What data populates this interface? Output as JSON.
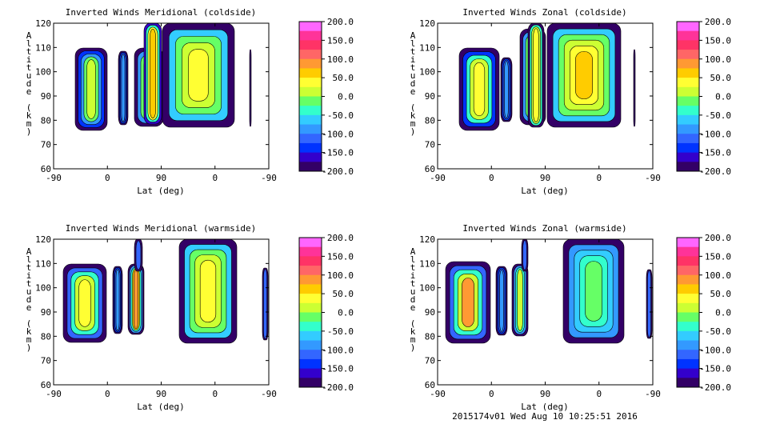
{
  "footer": "2015174v01 Wed Aug 10 10:25:51 2016",
  "colorbar": {
    "labels": [
      "200.0",
      "150.0",
      "100.0",
      "50.0",
      "0.0",
      "-50.0",
      "-100.0",
      "-150.0",
      "-200.0"
    ],
    "colors": [
      "#ff66ff",
      "#ff3399",
      "#ff3366",
      "#ff6666",
      "#ff9933",
      "#ffcc00",
      "#ffff33",
      "#ccff33",
      "#66ff66",
      "#33ffcc",
      "#33ccff",
      "#3399ff",
      "#3366ff",
      "#0033ff",
      "#3300cc",
      "#330066"
    ]
  },
  "chart_data": [
    {
      "type": "heatmap",
      "title": "Inverted Winds Meridional (coldside)",
      "xlabel": "Lat (deg)",
      "ylabel": "Altitude (km)",
      "x_ticks": [
        "-90",
        "0",
        "90",
        "0",
        "-90"
      ],
      "y_ticks": [
        "60",
        "70",
        "80",
        "90",
        "100",
        "110",
        "120"
      ],
      "ylim": [
        60,
        120
      ],
      "zlim": [
        -200,
        200
      ]
    },
    {
      "type": "heatmap",
      "title": "Inverted Winds Zonal (coldside)",
      "xlabel": "Lat (deg)",
      "ylabel": "Altitude (km)",
      "x_ticks": [
        "-90",
        "0",
        "90",
        "0",
        "-90"
      ],
      "y_ticks": [
        "60",
        "70",
        "80",
        "90",
        "100",
        "110",
        "120"
      ],
      "ylim": [
        60,
        120
      ],
      "zlim": [
        -200,
        200
      ]
    },
    {
      "type": "heatmap",
      "title": "Inverted Winds Meridional (warmside)",
      "xlabel": "Lat (deg)",
      "ylabel": "Altitude (km)",
      "x_ticks": [
        "-90",
        "0",
        "90",
        "0",
        "-90"
      ],
      "y_ticks": [
        "60",
        "70",
        "80",
        "90",
        "100",
        "110",
        "120"
      ],
      "ylim": [
        60,
        120
      ],
      "zlim": [
        -200,
        200
      ]
    },
    {
      "type": "heatmap",
      "title": "Inverted Winds Zonal (warmside)",
      "xlabel": "Lat (deg)",
      "ylabel": "Altitude (km)",
      "x_ticks": [
        "-90",
        "0",
        "90",
        "0",
        "-90"
      ],
      "y_ticks": [
        "60",
        "70",
        "80",
        "90",
        "100",
        "110",
        "120"
      ],
      "ylim": [
        60,
        120
      ],
      "zlim": [
        -200,
        200
      ]
    }
  ]
}
